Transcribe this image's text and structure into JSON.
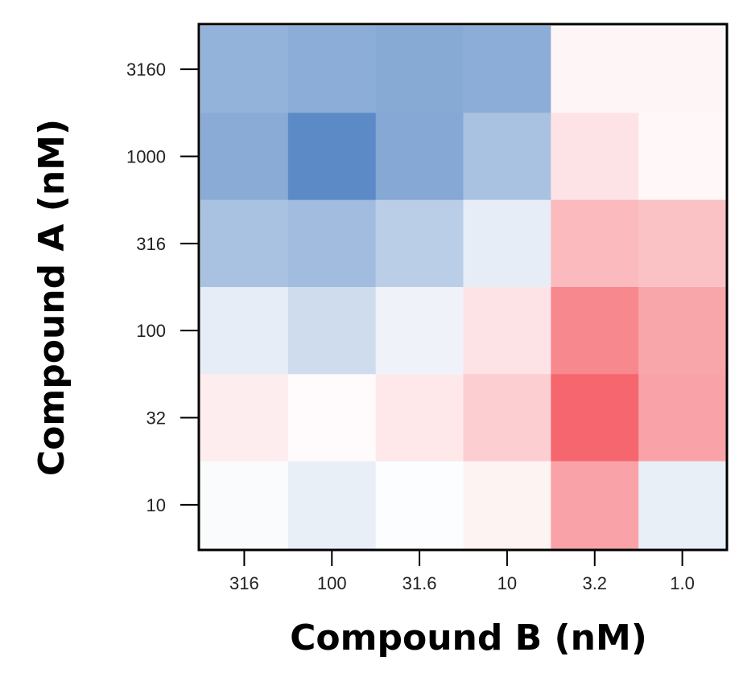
{
  "chart_data": {
    "type": "heatmap",
    "title": "",
    "xlabel": "Compound B (nM)",
    "ylabel": "Compound A (nM)",
    "x_categories": [
      "316",
      "100",
      "31.6",
      "10",
      "3.2",
      "1.0"
    ],
    "y_categories": [
      "3160",
      "1000",
      "316",
      "100",
      "32",
      "10"
    ],
    "color_scale": {
      "negative": "#5b8ac6",
      "neutral": "#ffffff",
      "positive": "#f5666e"
    },
    "values": [
      [
        -0.65,
        -0.7,
        -0.73,
        -0.7,
        0.06,
        0.06
      ],
      [
        -0.72,
        -1.0,
        -0.74,
        -0.52,
        0.18,
        0.05
      ],
      [
        -0.52,
        -0.57,
        -0.42,
        -0.15,
        0.45,
        0.4
      ],
      [
        -0.15,
        -0.3,
        -0.1,
        0.18,
        0.78,
        0.58
      ],
      [
        0.12,
        0.03,
        0.15,
        0.32,
        1.0,
        0.6
      ],
      [
        -0.03,
        -0.14,
        -0.02,
        0.08,
        0.6,
        -0.14
      ]
    ]
  }
}
